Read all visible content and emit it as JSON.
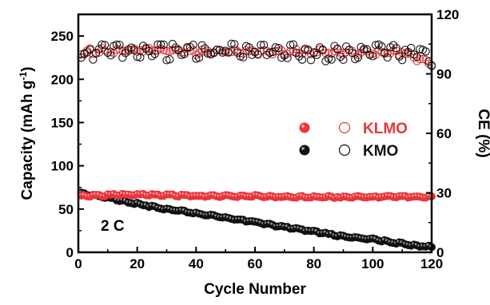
{
  "chart_data": {
    "type": "scatter",
    "xlabel": "Cycle Number",
    "ylabel_left": "Capacity (mAh g",
    "ylabel_left_sup": "-1",
    "ylabel_left_close": ")",
    "ylabel_right": "CE (%)",
    "xlim": [
      0,
      120
    ],
    "ylim_left": [
      0,
      275
    ],
    "ylim_right": [
      0,
      120
    ],
    "x_ticks": [
      "0",
      "20",
      "40",
      "60",
      "80",
      "100",
      "120"
    ],
    "y_left_ticks": [
      "0",
      "50",
      "100",
      "150",
      "200",
      "250"
    ],
    "y_right_ticks": [
      "0",
      "30",
      "60",
      "90",
      "120"
    ],
    "annotation": "2 C",
    "grid": false,
    "legend_position": "center-right",
    "colors": {
      "KLMO": "#e8363a",
      "KMO": "#111111"
    },
    "series": [
      {
        "name": "KLMO",
        "role": "capacity",
        "axis": "left",
        "marker": "filled",
        "x": [
          1,
          10,
          20,
          30,
          40,
          50,
          60,
          70,
          80,
          90,
          100,
          110,
          120
        ],
        "y": [
          65,
          66,
          67,
          66,
          65,
          65,
          65,
          64,
          64,
          64,
          64,
          64,
          64
        ]
      },
      {
        "name": "KLMO",
        "role": "coulombic-efficiency",
        "axis": "right",
        "marker": "open",
        "x": [
          1,
          10,
          20,
          30,
          40,
          50,
          60,
          70,
          80,
          90,
          100,
          110,
          120
        ],
        "y": [
          101,
          102,
          102,
          102,
          101,
          101,
          101,
          101,
          101,
          101,
          101,
          101,
          95
        ]
      },
      {
        "name": "KMO",
        "role": "capacity",
        "axis": "left",
        "marker": "filled",
        "x": [
          1,
          10,
          20,
          30,
          40,
          50,
          60,
          70,
          80,
          90,
          100,
          110,
          120
        ],
        "y": [
          68,
          63,
          56,
          50,
          45,
          40,
          35,
          29,
          24,
          18,
          15,
          10,
          6
        ]
      },
      {
        "name": "KMO",
        "role": "coulombic-efficiency",
        "axis": "right",
        "marker": "open",
        "x": [
          1,
          10,
          20,
          30,
          40,
          50,
          60,
          70,
          80,
          90,
          100,
          110,
          120
        ],
        "y": [
          100,
          101,
          101,
          101,
          101,
          102,
          102,
          101,
          101,
          100,
          101,
          101,
          98
        ]
      }
    ]
  }
}
